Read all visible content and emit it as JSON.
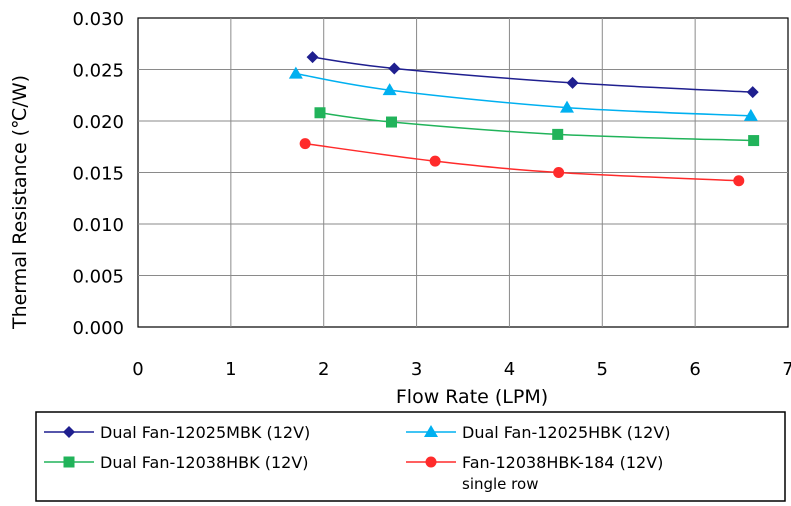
{
  "chart_data": {
    "type": "line",
    "title": "",
    "xlabel": "Flow Rate (LPM)",
    "ylabel": "Thermal Resistance (℃/W)",
    "xlim": [
      0,
      7
    ],
    "ylim": [
      0,
      0.03
    ],
    "x_ticks": [
      "0",
      "1",
      "2",
      "3",
      "4",
      "5",
      "6",
      "7"
    ],
    "y_ticks": [
      "0.000",
      "0.005",
      "0.010",
      "0.015",
      "0.020",
      "0.025",
      "0.030"
    ],
    "grid": true,
    "legend_position": "bottom",
    "series": [
      {
        "name": "Dual Fan-12025MBK (12V)",
        "color": "#1f1f8f",
        "marker": "diamond",
        "points": [
          [
            1.88,
            0.0262
          ],
          [
            2.76,
            0.0251
          ],
          [
            4.68,
            0.0237
          ],
          [
            6.62,
            0.0228
          ]
        ]
      },
      {
        "name": "Dual Fan-12025HBK (12V)",
        "color": "#00b0f0",
        "marker": "triangle",
        "points": [
          [
            1.7,
            0.0246
          ],
          [
            2.71,
            0.023
          ],
          [
            4.62,
            0.0213
          ],
          [
            6.6,
            0.0205
          ]
        ]
      },
      {
        "name": "Dual Fan-12038HBK (12V)",
        "color": "#21b35a",
        "marker": "square",
        "points": [
          [
            1.96,
            0.0208
          ],
          [
            2.73,
            0.0199
          ],
          [
            4.52,
            0.0187
          ],
          [
            6.63,
            0.0181
          ]
        ]
      },
      {
        "name": "Fan-12038HBK-184 (12V)",
        "subtitle": "single row",
        "color": "#ff2b2b",
        "marker": "circle",
        "points": [
          [
            1.8,
            0.0178
          ],
          [
            3.2,
            0.0161
          ],
          [
            4.53,
            0.015
          ],
          [
            6.47,
            0.0142
          ]
        ]
      }
    ]
  }
}
